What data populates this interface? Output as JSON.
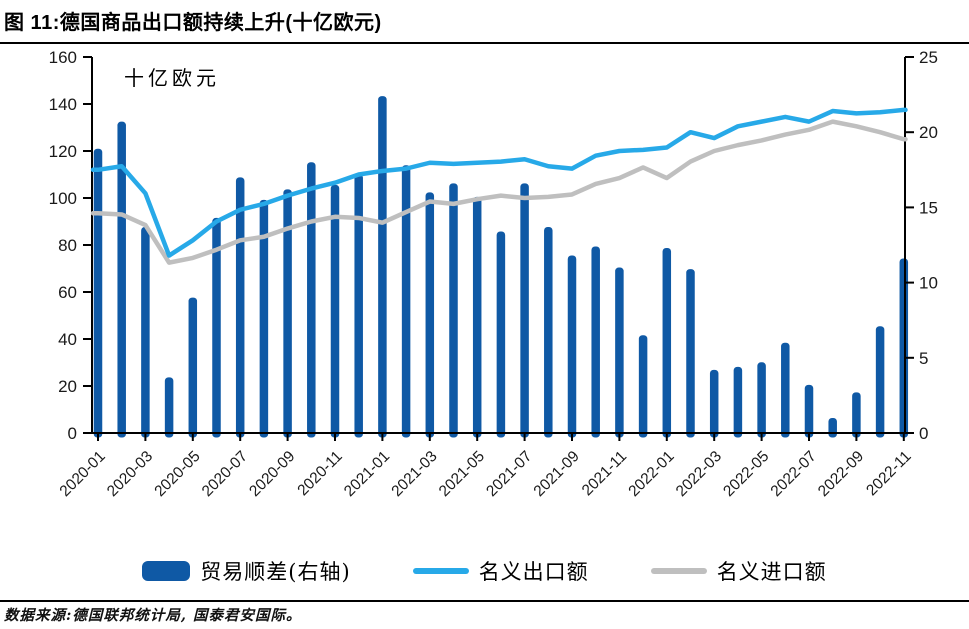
{
  "header": {
    "title": "图 11:德国商品出口额持续上升(十亿欧元)"
  },
  "chart_data": {
    "type": "combo-bar-line",
    "title": "图 11:德国商品出口额持续上升(十亿欧元)",
    "unit_annotation": "十亿欧元",
    "legend_position": "bottom",
    "grid": false,
    "categories": [
      "2020-01",
      "2020-02",
      "2020-03",
      "2020-04",
      "2020-05",
      "2020-06",
      "2020-07",
      "2020-08",
      "2020-09",
      "2020-10",
      "2020-11",
      "2020-12",
      "2021-01",
      "2021-02",
      "2021-03",
      "2021-04",
      "2021-05",
      "2021-06",
      "2021-07",
      "2021-08",
      "2021-09",
      "2021-10",
      "2021-11",
      "2021-12",
      "2022-01",
      "2022-02",
      "2022-03",
      "2022-04",
      "2022-05",
      "2022-06",
      "2022-07",
      "2022-08",
      "2022-09",
      "2022-10",
      "2022-11"
    ],
    "x_tick_labels": [
      "2020-01",
      "2020-03",
      "2020-05",
      "2020-07",
      "2020-09",
      "2020-11",
      "2021-01",
      "2021-03",
      "2021-05",
      "2021-07",
      "2021-09",
      "2021-11",
      "2022-01",
      "2022-03",
      "2022-05",
      "2022-07",
      "2022-09",
      "2022-11"
    ],
    "left_axis": {
      "min": 0,
      "max": 160,
      "step": 20,
      "ticks": [
        160,
        140,
        120,
        100,
        80,
        60,
        40,
        20,
        0
      ]
    },
    "right_axis": {
      "min": 0,
      "max": 25,
      "step": 5,
      "ticks": [
        25,
        20,
        15,
        10,
        5,
        0
      ]
    },
    "series": [
      {
        "name": "贸易顺差(右轴)",
        "type": "bar",
        "axis": "right",
        "color": "#0F59A5",
        "values": [
          18.9,
          20.7,
          13.7,
          3.7,
          9.0,
          14.3,
          17.0,
          15.5,
          16.2,
          18.0,
          16.5,
          17.2,
          22.4,
          17.8,
          16.0,
          16.6,
          15.7,
          13.4,
          16.6,
          13.7,
          11.8,
          12.4,
          11.0,
          6.5,
          12.3,
          10.9,
          4.2,
          4.4,
          4.7,
          6.0,
          3.2,
          1.0,
          2.7,
          7.1,
          11.6
        ]
      },
      {
        "name": "名义出口额",
        "type": "line",
        "axis": "left",
        "color": "#27A9E8",
        "values": [
          112,
          113.5,
          102,
          75.5,
          82,
          90,
          95,
          97.5,
          101,
          104,
          106.5,
          110,
          111.5,
          112.5,
          115,
          114.5,
          115,
          115.5,
          116.5,
          113.5,
          112.5,
          118,
          120,
          120.5,
          121.5,
          128,
          125.5,
          130.5,
          132.5,
          134.5,
          132.5,
          137,
          136,
          136.5,
          137.5
        ]
      },
      {
        "name": "名义进口额",
        "type": "line",
        "axis": "left",
        "color": "#BFBFBF",
        "values": [
          93.5,
          93,
          88.5,
          72.5,
          74.5,
          78,
          82,
          83.5,
          87,
          90,
          92,
          91.5,
          89.5,
          94,
          98.5,
          97.5,
          99.5,
          101,
          100,
          100.5,
          101.5,
          106,
          108.5,
          113,
          108.5,
          115.5,
          120,
          122.5,
          124.5,
          127,
          129,
          132.5,
          130.5,
          128,
          125
        ]
      }
    ]
  },
  "footer": {
    "source": "数据来源:德国联邦统计局, 国泰君安国际。"
  }
}
